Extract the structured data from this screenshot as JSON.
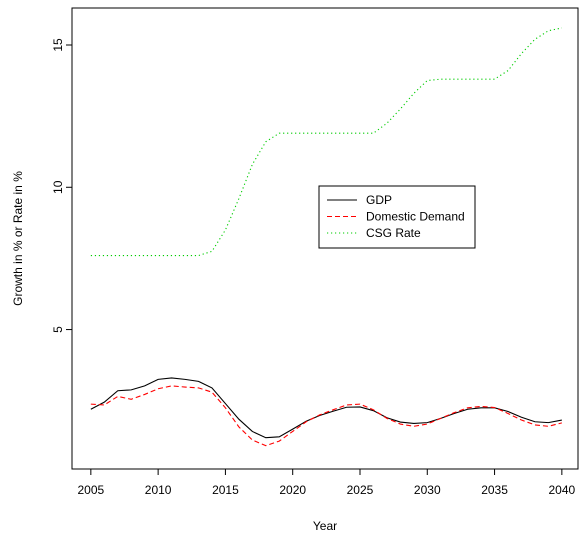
{
  "chart_data": {
    "type": "line",
    "title": "",
    "xlabel": "Year",
    "ylabel": "Growth in % or Rate in %",
    "xlim": [
      2003.6,
      2041.2
    ],
    "ylim": [
      0.1,
      16.3
    ],
    "x_ticks": [
      2005,
      2010,
      2015,
      2020,
      2025,
      2030,
      2035,
      2040
    ],
    "y_ticks": [
      5,
      10,
      15
    ],
    "x_tick_labels": [
      "2005",
      "2010",
      "2015",
      "2020",
      "2025",
      "2030",
      "2035",
      "2040"
    ],
    "y_tick_labels": [
      "5",
      "10",
      "15"
    ],
    "grid": false,
    "legend_position": "center-right",
    "x": [
      2005,
      2006,
      2007,
      2008,
      2009,
      2010,
      2011,
      2012,
      2013,
      2014,
      2015,
      2016,
      2017,
      2018,
      2019,
      2020,
      2021,
      2022,
      2023,
      2024,
      2025,
      2026,
      2027,
      2028,
      2029,
      2030,
      2031,
      2032,
      2033,
      2034,
      2035,
      2036,
      2037,
      2038,
      2039,
      2040
    ],
    "series": [
      {
        "name": "GDP",
        "color": "#000000",
        "dash": "solid",
        "values": [
          2.2,
          2.45,
          2.85,
          2.88,
          3.02,
          3.25,
          3.3,
          3.25,
          3.18,
          2.95,
          2.4,
          1.85,
          1.42,
          1.2,
          1.23,
          1.5,
          1.78,
          1.98,
          2.13,
          2.27,
          2.28,
          2.15,
          1.9,
          1.75,
          1.7,
          1.73,
          1.88,
          2.05,
          2.2,
          2.25,
          2.25,
          2.12,
          1.92,
          1.76,
          1.73,
          1.82
        ]
      },
      {
        "name": "Domestic Demand",
        "color": "#ff0000",
        "dash": "dashed",
        "values": [
          2.38,
          2.35,
          2.65,
          2.55,
          2.72,
          2.92,
          3.02,
          2.98,
          2.95,
          2.8,
          2.25,
          1.58,
          1.12,
          0.92,
          1.08,
          1.42,
          1.76,
          2.0,
          2.18,
          2.35,
          2.38,
          2.18,
          1.88,
          1.68,
          1.6,
          1.68,
          1.88,
          2.08,
          2.25,
          2.3,
          2.26,
          2.05,
          1.82,
          1.65,
          1.6,
          1.72
        ]
      },
      {
        "name": "CSG Rate",
        "color": "#00cc00",
        "dash": "dotted",
        "values": [
          7.6,
          7.6,
          7.6,
          7.6,
          7.6,
          7.6,
          7.6,
          7.6,
          7.6,
          7.75,
          8.5,
          9.6,
          10.8,
          11.6,
          11.9,
          11.9,
          11.9,
          11.9,
          11.9,
          11.9,
          11.9,
          11.9,
          12.25,
          12.75,
          13.3,
          13.75,
          13.8,
          13.8,
          13.8,
          13.8,
          13.8,
          14.1,
          14.7,
          15.2,
          15.5,
          15.6
        ]
      }
    ]
  }
}
